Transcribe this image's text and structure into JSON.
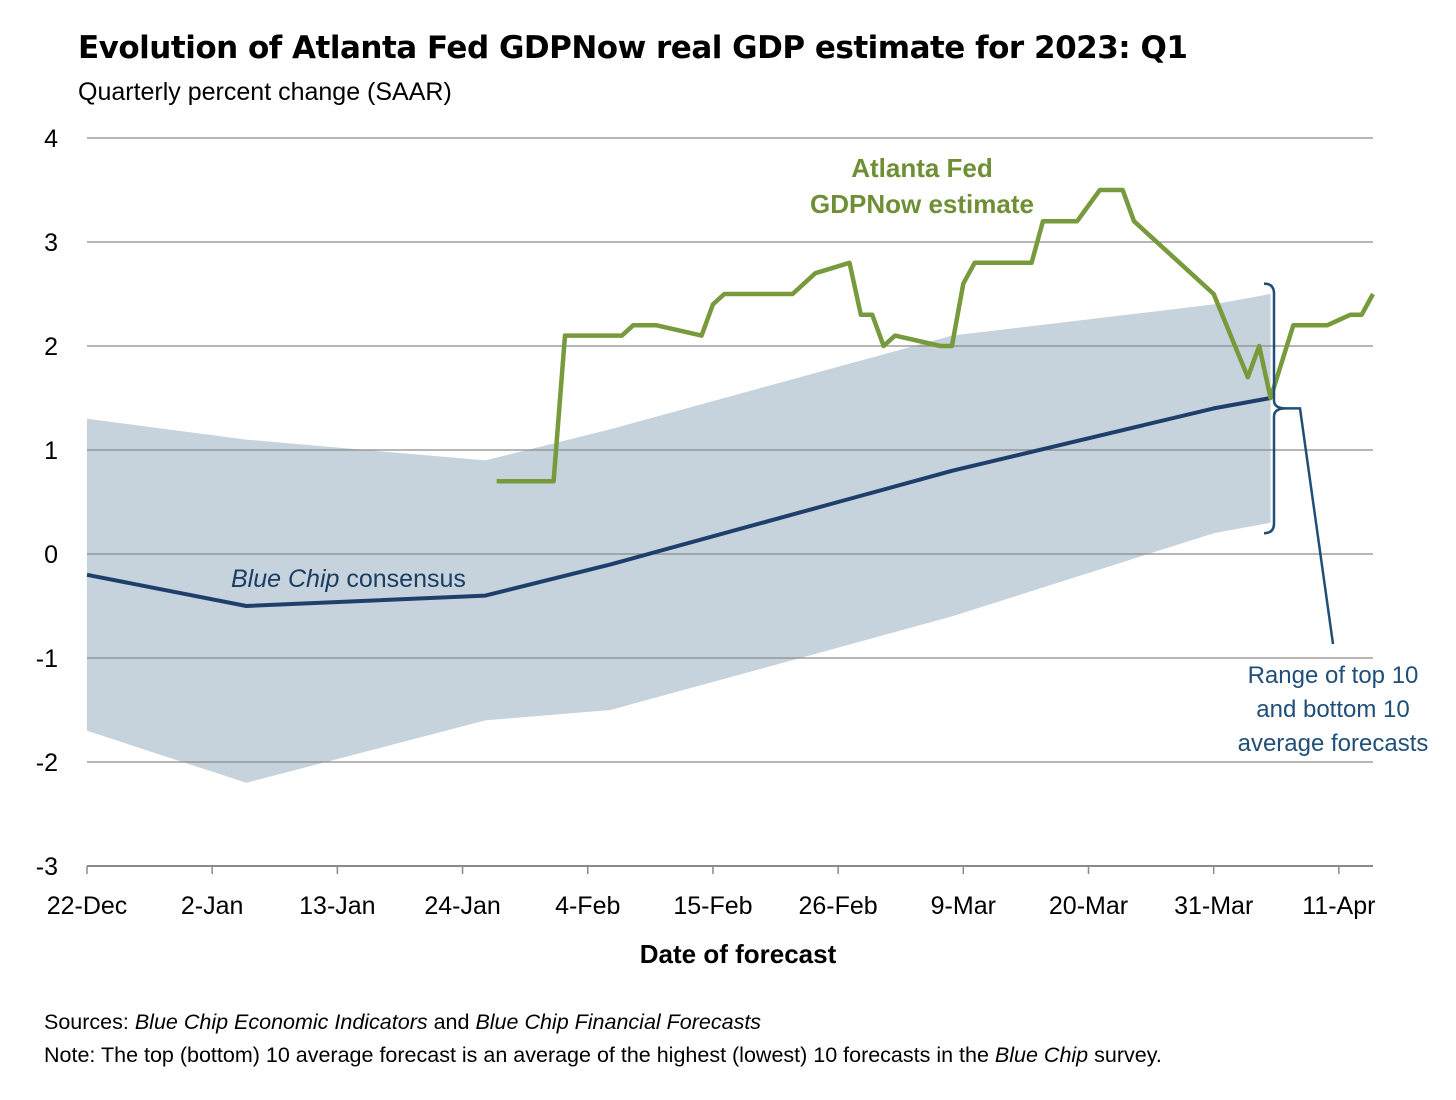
{
  "title": "Evolution of Atlanta Fed GDPNow real GDP estimate for 2023: Q1",
  "subtitle": "Quarterly percent change (SAAR)",
  "notes": {
    "sources_label": "Sources",
    "sources_sep": ": ",
    "sources_pub1": "Blue Chip Economic Indicators",
    "sources_and": " and ",
    "sources_pub2": "Blue Chip Financial Forecasts",
    "note_label": "Note",
    "note_text_1": ": The top (bottom) 10 average forecast is an average of the highest (lowest) 10 forecasts in the ",
    "note_italic": "Blue Chip",
    "note_text_2": " survey."
  },
  "colors": {
    "gdpnow": "#779a3c",
    "consensus": "#1f3f6b",
    "band": "#c6d3dc",
    "grid": "#8a8a8a",
    "annotation_blue": "#1f4e79"
  },
  "chart_data": {
    "type": "line",
    "title": "Evolution of Atlanta Fed GDPNow real GDP estimate for 2023: Q1",
    "subtitle": "Quarterly percent change (SAAR)",
    "xlabel": "Date of forecast",
    "ylabel": "",
    "ylim": [
      -3,
      4
    ],
    "yticks": [
      4,
      3,
      2,
      1,
      0,
      -1,
      -2,
      -3
    ],
    "xlim": [
      "2022-12-22",
      "2023-04-14"
    ],
    "xticks": [
      {
        "date": "2022-12-22",
        "label": "22-Dec"
      },
      {
        "date": "2023-01-02",
        "label": "2-Jan"
      },
      {
        "date": "2023-01-13",
        "label": "13-Jan"
      },
      {
        "date": "2023-01-24",
        "label": "24-Jan"
      },
      {
        "date": "2023-02-04",
        "label": "4-Feb"
      },
      {
        "date": "2023-02-15",
        "label": "15-Feb"
      },
      {
        "date": "2023-02-26",
        "label": "26-Feb"
      },
      {
        "date": "2023-03-09",
        "label": "9-Mar"
      },
      {
        "date": "2023-03-20",
        "label": "20-Mar"
      },
      {
        "date": "2023-03-31",
        "label": "31-Mar"
      },
      {
        "date": "2023-04-11",
        "label": "11-Apr"
      }
    ],
    "grid": true,
    "series": [
      {
        "name": "Atlanta Fed GDPNow estimate",
        "points": [
          [
            "2023-01-27",
            0.7
          ],
          [
            "2023-02-01",
            0.7
          ],
          [
            "2023-02-02",
            2.1
          ],
          [
            "2023-02-07",
            2.1
          ],
          [
            "2023-02-08",
            2.2
          ],
          [
            "2023-02-10",
            2.2
          ],
          [
            "2023-02-14",
            2.1
          ],
          [
            "2023-02-15",
            2.4
          ],
          [
            "2023-02-16",
            2.5
          ],
          [
            "2023-02-22",
            2.5
          ],
          [
            "2023-02-24",
            2.7
          ],
          [
            "2023-02-27",
            2.8
          ],
          [
            "2023-02-28",
            2.3
          ],
          [
            "2023-03-01",
            2.3
          ],
          [
            "2023-03-02",
            2.0
          ],
          [
            "2023-03-03",
            2.1
          ],
          [
            "2023-03-07",
            2.0
          ],
          [
            "2023-03-08",
            2.0
          ],
          [
            "2023-03-09",
            2.6
          ],
          [
            "2023-03-10",
            2.8
          ],
          [
            "2023-03-15",
            2.8
          ],
          [
            "2023-03-16",
            3.2
          ],
          [
            "2023-03-17",
            3.2
          ],
          [
            "2023-03-19",
            3.2
          ],
          [
            "2023-03-21",
            3.5
          ],
          [
            "2023-03-23",
            3.5
          ],
          [
            "2023-03-24",
            3.2
          ],
          [
            "2023-03-29",
            2.7
          ],
          [
            "2023-03-31",
            2.5
          ],
          [
            "2023-04-03",
            1.7
          ],
          [
            "2023-04-04",
            2.0
          ],
          [
            "2023-04-05",
            1.5
          ],
          [
            "2023-04-07",
            2.2
          ],
          [
            "2023-04-10",
            2.2
          ],
          [
            "2023-04-12",
            2.3
          ],
          [
            "2023-04-13",
            2.3
          ],
          [
            "2023-04-14",
            2.5
          ]
        ]
      },
      {
        "name": "Blue Chip consensus",
        "name_italic": "Blue Chip",
        "name_rest": " consensus",
        "points": [
          [
            "2022-12-22",
            -0.2
          ],
          [
            "2023-01-05",
            -0.5
          ],
          [
            "2023-01-26",
            -0.4
          ],
          [
            "2023-02-06",
            -0.1
          ],
          [
            "2023-02-26",
            0.5
          ],
          [
            "2023-03-08",
            0.8
          ],
          [
            "2023-03-31",
            1.4
          ],
          [
            "2023-04-05",
            1.5
          ]
        ]
      },
      {
        "name": "Range of top 10 and bottom 10 average forecasts",
        "label_lines": [
          "Range of top 10",
          "and bottom 10",
          "average forecasts"
        ],
        "type": "band",
        "upper": [
          [
            "2022-12-22",
            1.3
          ],
          [
            "2023-01-05",
            1.1
          ],
          [
            "2023-01-26",
            0.9
          ],
          [
            "2023-02-06",
            1.2
          ],
          [
            "2023-02-26",
            1.8
          ],
          [
            "2023-03-08",
            2.1
          ],
          [
            "2023-03-31",
            2.4
          ],
          [
            "2023-04-05",
            2.5
          ]
        ],
        "lower": [
          [
            "2022-12-22",
            -1.7
          ],
          [
            "2023-01-05",
            -2.2
          ],
          [
            "2023-01-26",
            -1.6
          ],
          [
            "2023-02-06",
            -1.5
          ],
          [
            "2023-02-26",
            -0.9
          ],
          [
            "2023-03-08",
            -0.6
          ],
          [
            "2023-03-31",
            0.2
          ],
          [
            "2023-04-05",
            0.3
          ]
        ]
      }
    ],
    "annotations": {
      "gdpnow_label_lines": [
        "Atlanta Fed",
        "GDPNow estimate"
      ]
    }
  }
}
